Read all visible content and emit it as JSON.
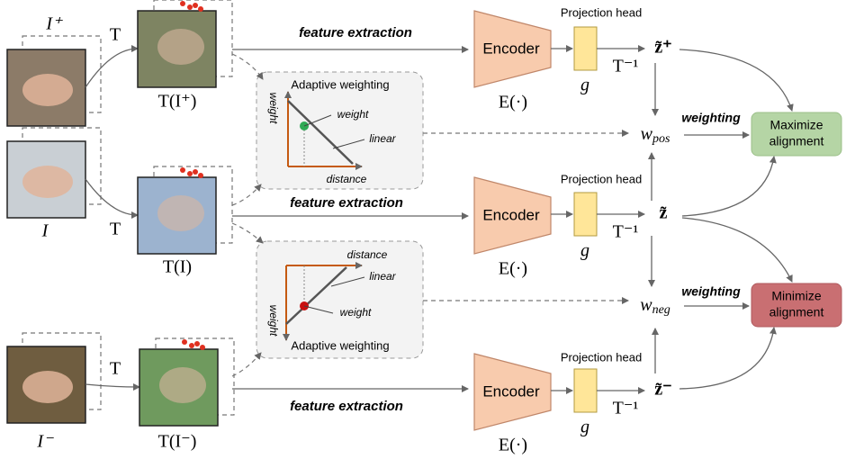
{
  "rows": [
    {
      "input": "I⁺",
      "transform": "T",
      "transformed": "T(I⁺)",
      "feature": "feature extraction",
      "encoder": "Encoder",
      "encoder_fn": "E(·)",
      "projection": "Projection head",
      "g": "g",
      "inverse": "T⁻¹",
      "output": "z̃⁺"
    },
    {
      "input": "I",
      "transform": "T",
      "transformed": "T(I)",
      "feature": "feature extraction",
      "encoder": "Encoder",
      "encoder_fn": "E(·)",
      "projection": "Projection head",
      "g": "g",
      "inverse": "T⁻¹",
      "output": "z̃"
    },
    {
      "input": "I⁻",
      "transform": "T",
      "transformed": "T(I⁻)",
      "feature": "feature extraction",
      "encoder": "Encoder",
      "encoder_fn": "E(·)",
      "projection": "Projection head",
      "g": "g",
      "inverse": "T⁻¹",
      "output": "z̃⁻"
    }
  ],
  "weighting_boxes": [
    {
      "title": "Adaptive weighting",
      "y_axis": "weight",
      "x_axis": "distance",
      "point": "weight",
      "line": "linear"
    },
    {
      "title": "Adaptive weighting",
      "y_axis": "weight",
      "x_axis": "distance",
      "point": "weight",
      "line": "linear"
    }
  ],
  "objectives": [
    {
      "symbol": {
        "base": "w",
        "sub": "pos"
      },
      "weighting": "weighting",
      "label": [
        "Maximize",
        "alignment"
      ]
    },
    {
      "symbol": {
        "base": "w",
        "sub": "neg"
      },
      "weighting": "weighting",
      "label": [
        "Minimize",
        "alignment"
      ]
    }
  ]
}
